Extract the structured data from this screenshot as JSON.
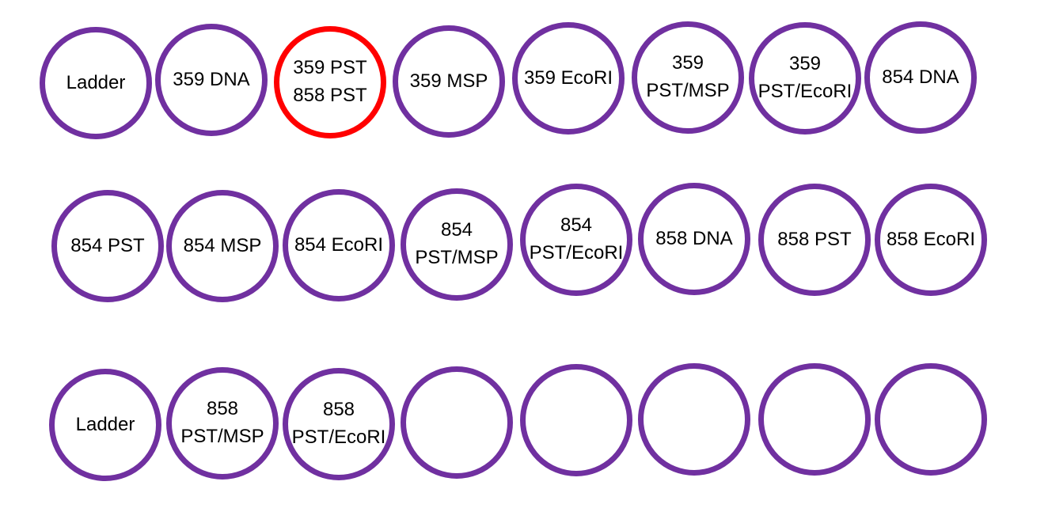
{
  "colors": {
    "well_border": "#7030a0",
    "highlight_border": "#ff0000",
    "text": "#000000",
    "background": "#ffffff"
  },
  "rows": [
    {
      "wells": [
        {
          "label": "Ladder",
          "highlight": false
        },
        {
          "label": "359 DNA",
          "highlight": false
        },
        {
          "label": "359 PST\n858 PST",
          "highlight": true
        },
        {
          "label": "359 MSP",
          "highlight": false
        },
        {
          "label": "359 EcoRI",
          "highlight": false
        },
        {
          "label": "359\nPST/MSP",
          "highlight": false
        },
        {
          "label": "359\nPST/EcoRI",
          "highlight": false
        },
        {
          "label": "854 DNA",
          "highlight": false
        }
      ]
    },
    {
      "wells": [
        {
          "label": "854 PST",
          "highlight": false
        },
        {
          "label": "854 MSP",
          "highlight": false
        },
        {
          "label": "854 EcoRI",
          "highlight": false
        },
        {
          "label": "854\nPST/MSP",
          "highlight": false
        },
        {
          "label": "854\nPST/EcoRI",
          "highlight": false
        },
        {
          "label": "858 DNA",
          "highlight": false
        },
        {
          "label": "858 PST",
          "highlight": false
        },
        {
          "label": "858 EcoRI",
          "highlight": false
        }
      ]
    },
    {
      "wells": [
        {
          "label": "Ladder",
          "highlight": false
        },
        {
          "label": "858\nPST/MSP",
          "highlight": false
        },
        {
          "label": "858\nPST/EcoRI",
          "highlight": false
        },
        {
          "label": "",
          "highlight": false
        },
        {
          "label": "",
          "highlight": false
        },
        {
          "label": "",
          "highlight": false
        },
        {
          "label": "",
          "highlight": false
        },
        {
          "label": "",
          "highlight": false
        }
      ]
    }
  ]
}
